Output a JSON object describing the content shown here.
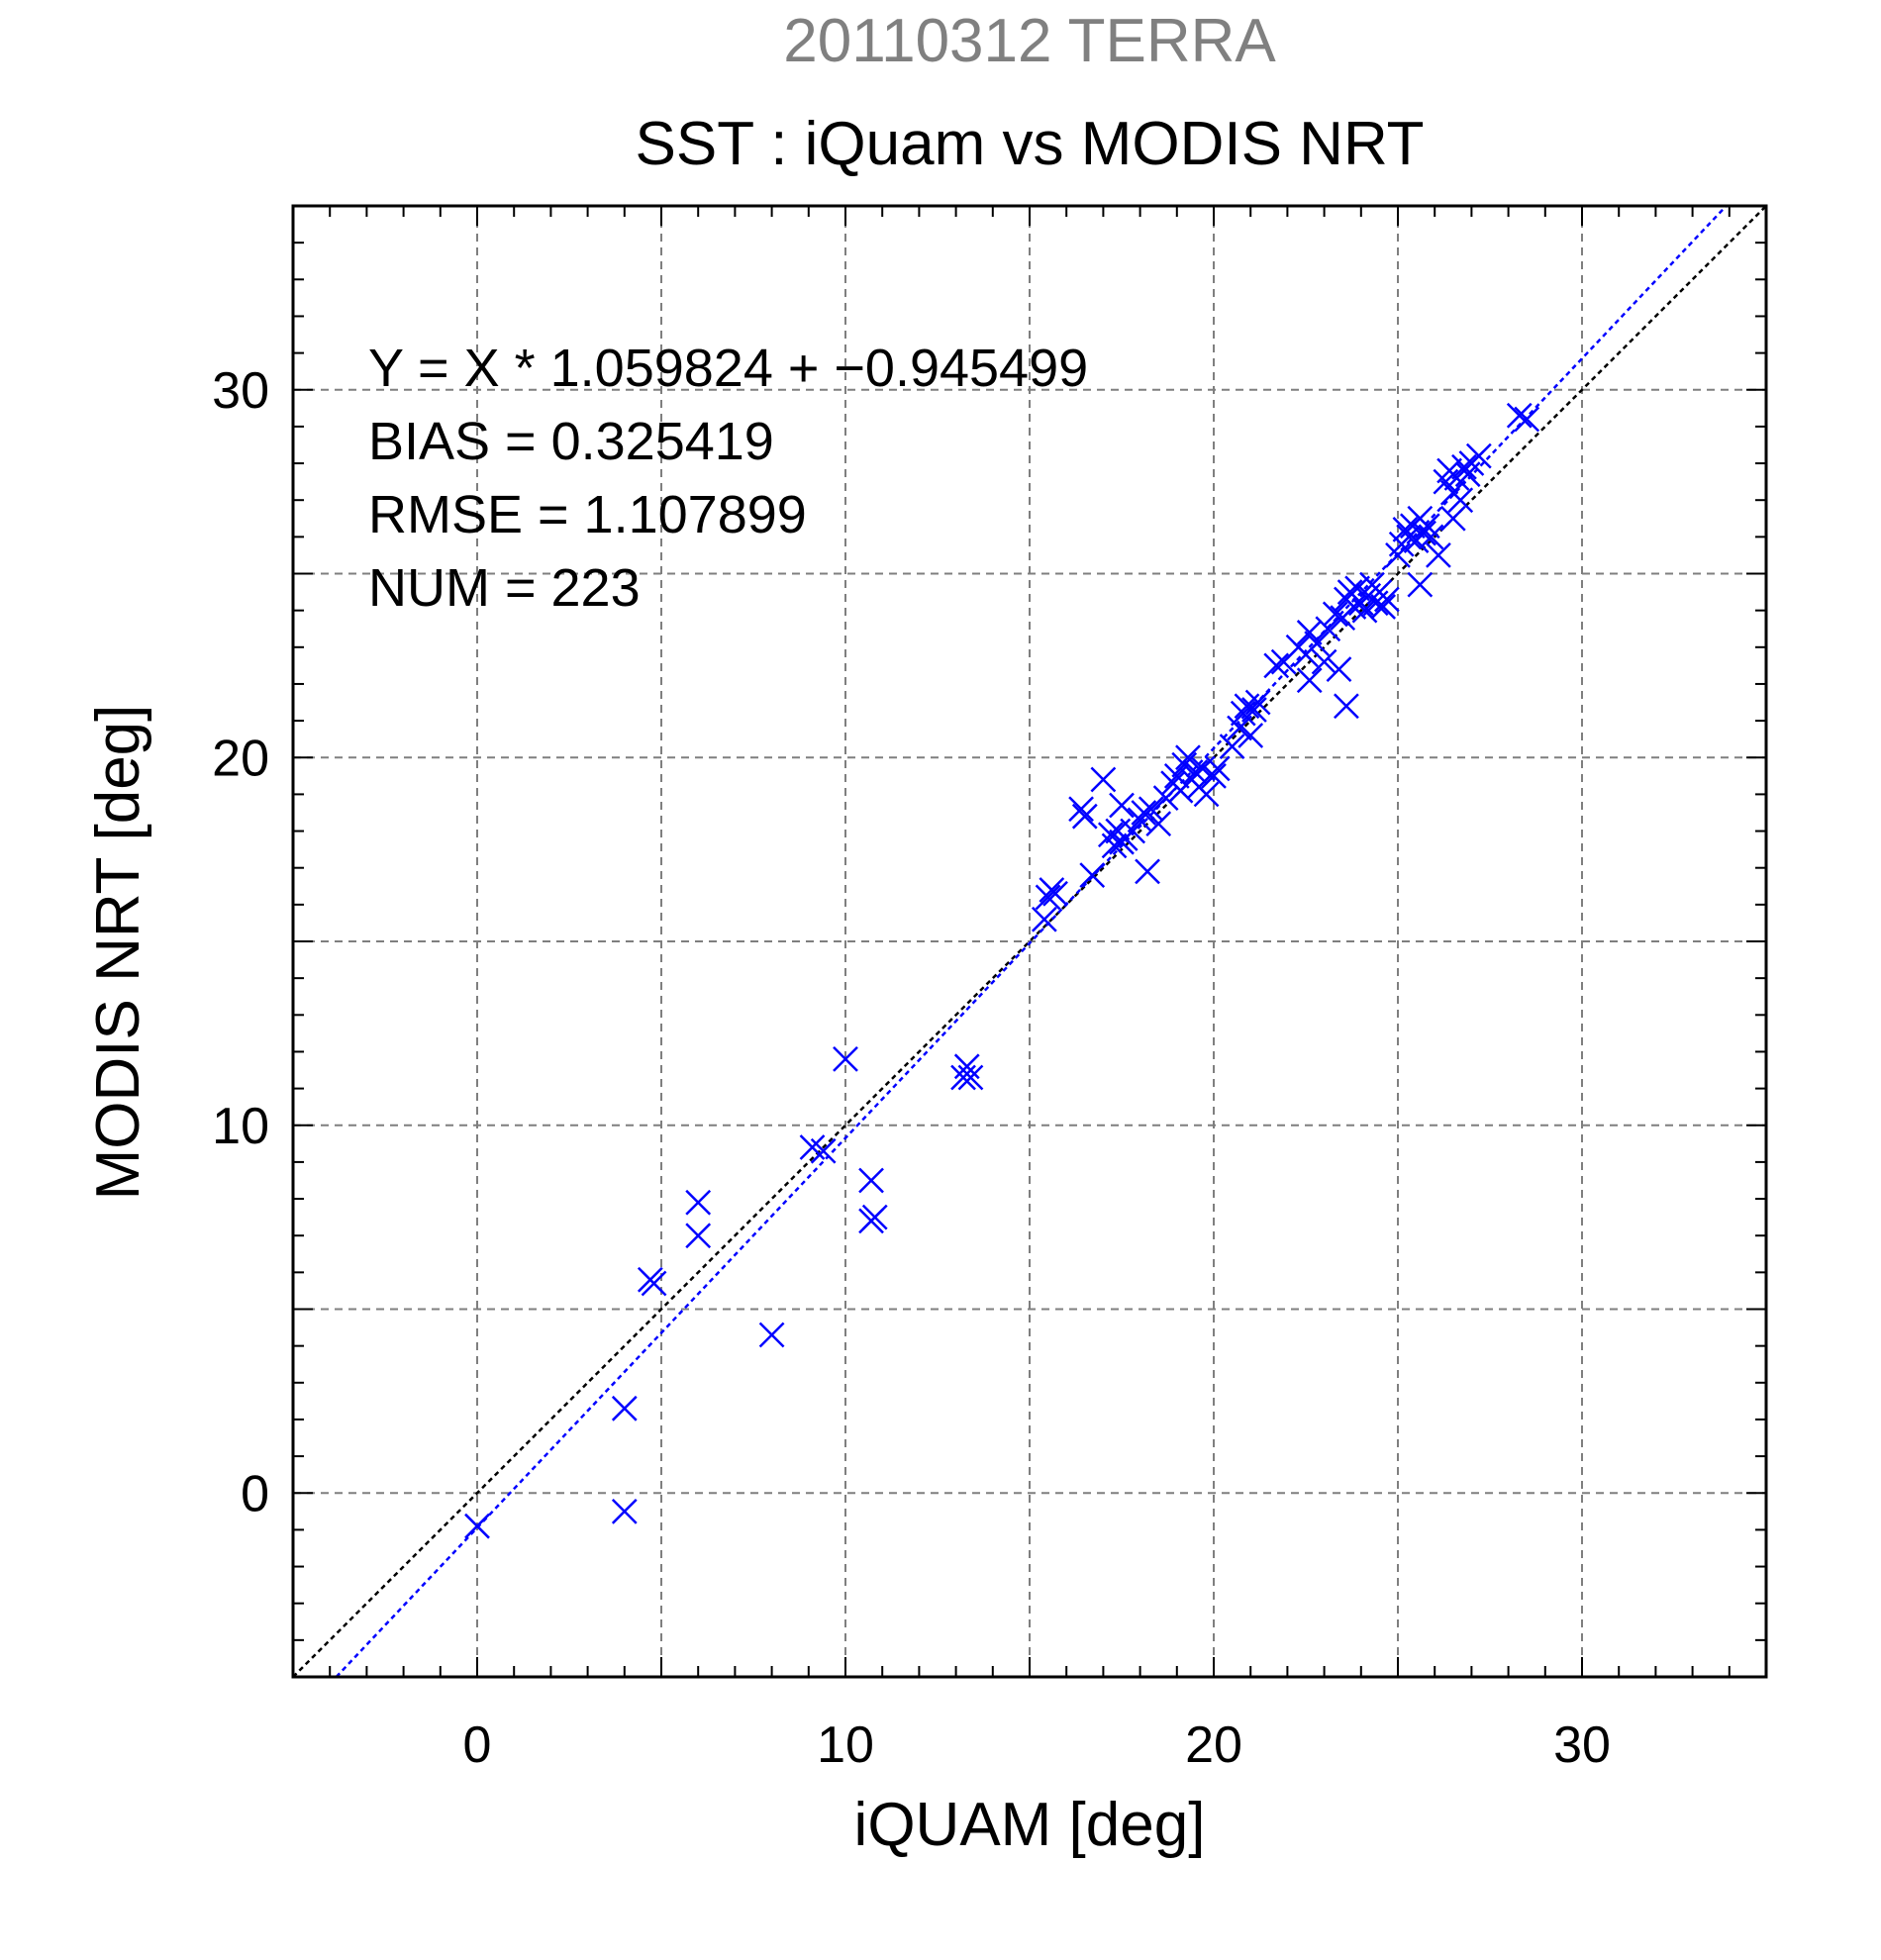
{
  "chart_data": {
    "type": "scatter",
    "title": "SST : iQuam vs MODIS NRT",
    "subtitle": "20110312 TERRA",
    "xlabel": "iQUAM [deg]",
    "ylabel": "MODIS NRT [deg]",
    "xlim": [
      -5,
      35
    ],
    "ylim": [
      -5,
      35
    ],
    "xticks": [
      0,
      10,
      20,
      30
    ],
    "yticks": [
      0,
      10,
      20,
      30
    ],
    "x_tick_labels": [
      "0",
      "10",
      "20",
      "30"
    ],
    "y_tick_labels": [
      "0",
      "10",
      "20",
      "30"
    ],
    "grid": true,
    "colors": {
      "points": "#0000ff",
      "fit_line": "#0000ff",
      "identity_line": "#000000",
      "subtitle": "#808080",
      "grid": "#7f7f7f"
    },
    "annotations": [
      "Y = X * 1.059824 + −0.945499",
      "BIAS = 0.325419",
      "RMSE = 1.107899",
      "NUM = 223"
    ],
    "fit": {
      "slope": 1.059824,
      "intercept": -0.945499
    },
    "points": [
      [
        0.0,
        -0.9
      ],
      [
        4.0,
        -0.5
      ],
      [
        4.0,
        2.3
      ],
      [
        4.7,
        5.8
      ],
      [
        4.8,
        5.7
      ],
      [
        6.0,
        7.0
      ],
      [
        6.0,
        7.9
      ],
      [
        8.0,
        4.3
      ],
      [
        9.1,
        9.4
      ],
      [
        9.4,
        9.3
      ],
      [
        10.0,
        11.8
      ],
      [
        10.7,
        8.5
      ],
      [
        10.7,
        7.4
      ],
      [
        10.8,
        7.5
      ],
      [
        13.2,
        11.3
      ],
      [
        13.3,
        11.6
      ],
      [
        13.4,
        11.3
      ],
      [
        15.4,
        15.6
      ],
      [
        15.5,
        16.2
      ],
      [
        15.6,
        16.4
      ],
      [
        15.7,
        16.3
      ],
      [
        16.4,
        18.6
      ],
      [
        16.5,
        18.4
      ],
      [
        16.7,
        16.8
      ],
      [
        17.0,
        19.4
      ],
      [
        17.2,
        17.9
      ],
      [
        17.3,
        17.6
      ],
      [
        17.4,
        18.0
      ],
      [
        17.5,
        17.7
      ],
      [
        17.5,
        18.7
      ],
      [
        17.6,
        17.8
      ],
      [
        17.8,
        18.0
      ],
      [
        18.0,
        18.3
      ],
      [
        18.1,
        18.5
      ],
      [
        18.2,
        16.9
      ],
      [
        18.3,
        18.6
      ],
      [
        18.5,
        18.2
      ],
      [
        18.7,
        18.9
      ],
      [
        18.9,
        19.3
      ],
      [
        19.0,
        19.5
      ],
      [
        19.1,
        19.1
      ],
      [
        19.2,
        19.8
      ],
      [
        19.3,
        20.0
      ],
      [
        19.4,
        19.4
      ],
      [
        19.5,
        19.6
      ],
      [
        19.6,
        19.2
      ],
      [
        19.7,
        19.7
      ],
      [
        19.8,
        19.0
      ],
      [
        20.0,
        19.5
      ],
      [
        20.1,
        19.7
      ],
      [
        20.5,
        20.3
      ],
      [
        20.7,
        20.8
      ],
      [
        20.8,
        21.2
      ],
      [
        20.9,
        21.4
      ],
      [
        21.0,
        20.6
      ],
      [
        21.1,
        21.3
      ],
      [
        21.2,
        21.5
      ],
      [
        21.7,
        22.5
      ],
      [
        21.9,
        22.6
      ],
      [
        22.3,
        23.0
      ],
      [
        22.5,
        22.8
      ],
      [
        22.6,
        22.1
      ],
      [
        22.6,
        23.4
      ],
      [
        22.8,
        23.1
      ],
      [
        23.0,
        22.6
      ],
      [
        23.1,
        23.5
      ],
      [
        23.3,
        23.9
      ],
      [
        23.4,
        22.4
      ],
      [
        23.5,
        23.8
      ],
      [
        23.6,
        21.4
      ],
      [
        23.6,
        24.3
      ],
      [
        23.7,
        24.5
      ],
      [
        23.8,
        24.1
      ],
      [
        23.9,
        24.6
      ],
      [
        24.0,
        24.2
      ],
      [
        24.1,
        24.0
      ],
      [
        24.2,
        24.4
      ],
      [
        24.3,
        24.7
      ],
      [
        24.4,
        24.2
      ],
      [
        24.5,
        24.5
      ],
      [
        24.6,
        24.1
      ],
      [
        24.7,
        24.3
      ],
      [
        25.0,
        25.5
      ],
      [
        25.1,
        25.8
      ],
      [
        25.2,
        26.2
      ],
      [
        25.3,
        26.0
      ],
      [
        25.4,
        26.3
      ],
      [
        25.5,
        25.9
      ],
      [
        25.6,
        24.7
      ],
      [
        25.6,
        26.5
      ],
      [
        25.7,
        26.1
      ],
      [
        25.8,
        26.3
      ],
      [
        25.9,
        26.0
      ],
      [
        26.1,
        25.5
      ],
      [
        26.3,
        27.5
      ],
      [
        26.4,
        27.8
      ],
      [
        26.5,
        26.5
      ],
      [
        26.5,
        27.2
      ],
      [
        26.6,
        27.6
      ],
      [
        26.7,
        27.0
      ],
      [
        26.8,
        27.9
      ],
      [
        26.9,
        27.7
      ],
      [
        27.0,
        28.0
      ],
      [
        27.2,
        28.2
      ],
      [
        28.3,
        29.3
      ],
      [
        28.5,
        29.2
      ]
    ]
  }
}
